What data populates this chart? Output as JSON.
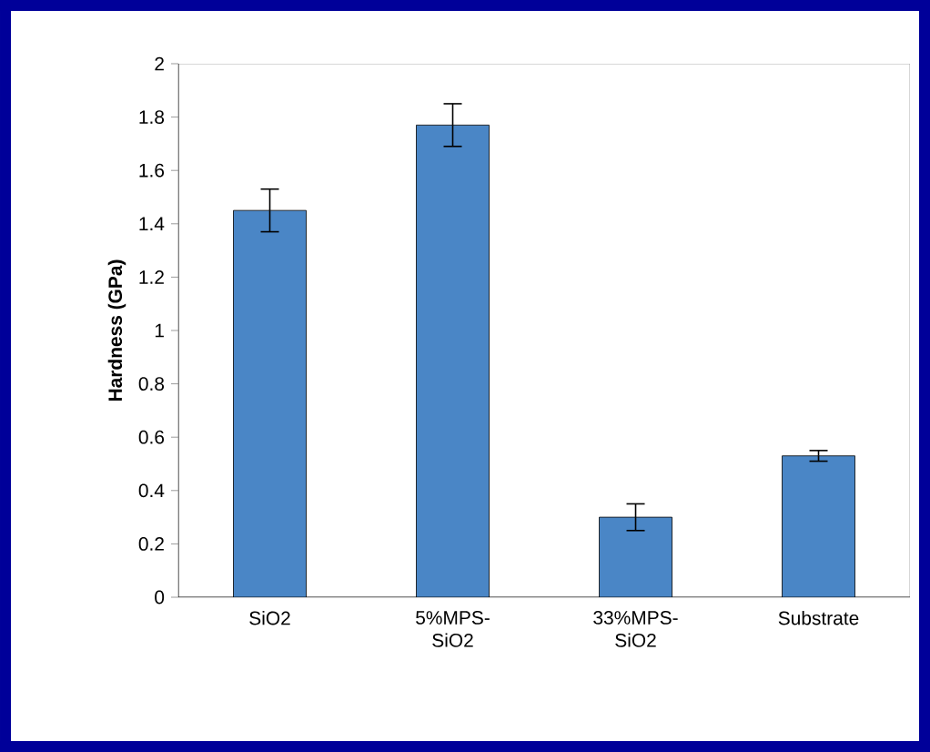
{
  "chart_data": {
    "type": "bar",
    "ylabel": "Hardness (GPa)",
    "categories": [
      "SiO2",
      "5%MPS-SiO2",
      "33%MPS-SiO2",
      "Substrate"
    ],
    "values": [
      1.45,
      1.77,
      0.3,
      0.53
    ],
    "errors": [
      0.08,
      0.08,
      0.05,
      0.02
    ],
    "color": "#4a86c6",
    "ylim": [
      0,
      2
    ],
    "yticks": [
      0,
      0.2,
      0.4,
      0.6,
      0.8,
      1,
      1.2,
      1.4,
      1.6,
      1.8,
      2
    ],
    "grid": false
  }
}
